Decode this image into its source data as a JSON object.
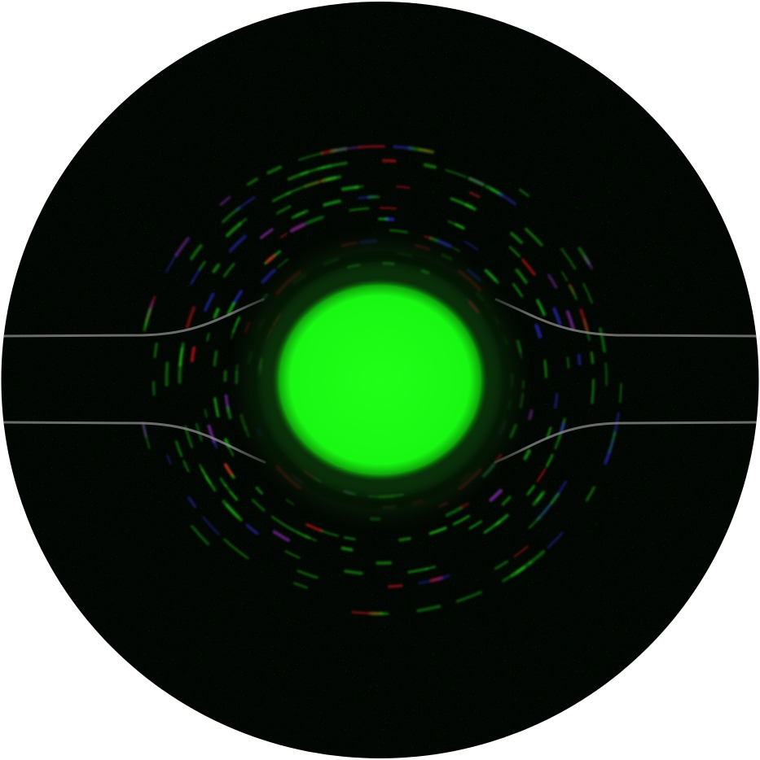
{
  "scene": {
    "subject": "circular-lens-view",
    "colors": {
      "field": "#020602",
      "core": "#19ff12",
      "glow": "#0a4d08",
      "ring_green": "#1fb81a",
      "ring_red": "#d4141e",
      "ring_blue": "#2a2cc8",
      "ring_violet": "#a035d6",
      "guide_rail": "#8c8c8c"
    }
  }
}
